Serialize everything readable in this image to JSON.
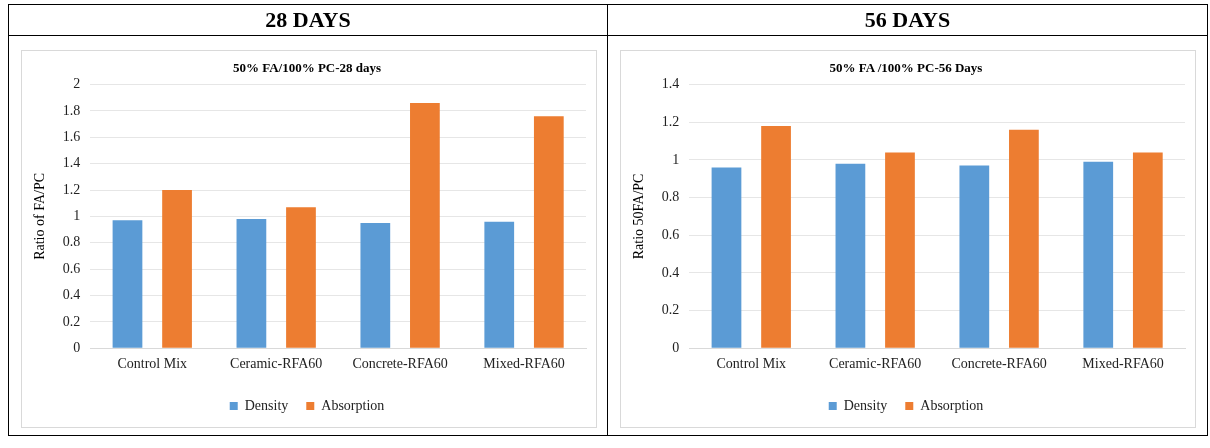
{
  "chart_data": [
    {
      "type": "bar",
      "title": "28 DAYS",
      "subtitle": "50% FA/100% PC-28 days",
      "ylabel": "Ratio of FA/PC",
      "categories": [
        "Control Mix",
        "Ceramic-RFA60",
        "Concrete-RFA60",
        "Mixed-RFA60"
      ],
      "series": [
        {
          "name": "Density",
          "color": "#5b9bd5",
          "values": [
            0.97,
            0.98,
            0.95,
            0.96
          ]
        },
        {
          "name": "Absorption",
          "color": "#ed7d31",
          "values": [
            1.2,
            1.07,
            1.86,
            1.76
          ]
        }
      ],
      "ylim": [
        0,
        2
      ],
      "yticks": [
        0,
        0.2,
        0.4,
        0.6,
        0.8,
        1,
        1.2,
        1.4,
        1.6,
        1.8,
        2
      ],
      "grid": "y",
      "legend": "bottom"
    },
    {
      "type": "bar",
      "title": "56 DAYS",
      "subtitle": "50% FA /100% PC-56 Days",
      "ylabel": "Ratio 50FA/PC",
      "categories": [
        "Control Mix",
        "Ceramic-RFA60",
        "Concrete-RFA60",
        "Mixed-RFA60"
      ],
      "series": [
        {
          "name": "Density",
          "color": "#5b9bd5",
          "values": [
            0.96,
            0.98,
            0.97,
            0.99
          ]
        },
        {
          "name": "Absorption",
          "color": "#ed7d31",
          "values": [
            1.18,
            1.04,
            1.16,
            1.04
          ]
        }
      ],
      "ylim": [
        0,
        1.4
      ],
      "yticks": [
        0,
        0.2,
        0.4,
        0.6,
        0.8,
        1,
        1.2,
        1.4
      ],
      "grid": "y",
      "legend": "bottom"
    }
  ]
}
